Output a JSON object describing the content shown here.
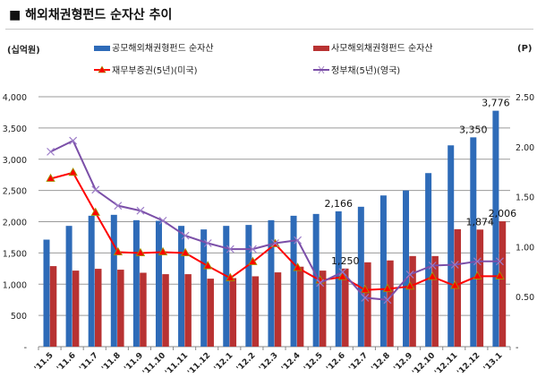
{
  "title": "■ 해외채권형펀드 순자산 추이",
  "chart_data": {
    "type": "bar+line",
    "title": "해외채권형펀드 순자산 추이",
    "left_axis_label": "(십억원)",
    "right_axis_label": "(P)",
    "left_ylim": [
      0,
      4000
    ],
    "left_ticks": [
      "-",
      "500",
      "1,000",
      "1,500",
      "2,000",
      "2,500",
      "3,000",
      "3,500",
      "4,000"
    ],
    "right_ylim": [
      0,
      2.5
    ],
    "right_ticks": [
      "-",
      "0.50",
      "1.00",
      "1.50",
      "2.00",
      "2.50"
    ],
    "grid": true,
    "legend_placement": "top",
    "categories": [
      "'11.5",
      "'11.6",
      "'11.7",
      "'11.8",
      "'11.9",
      "'11.10",
      "'11.11",
      "'11.12",
      "'12.1",
      "'12.2",
      "'12.3",
      "'12.4",
      "'12.5",
      "'12.6",
      "'12.7",
      "'12.8",
      "'12.9",
      "'12.10",
      "'12.11",
      "'12.12",
      "'13.1"
    ],
    "bar_series": [
      {
        "name": "공모해외채권형펀드 순자산",
        "color": "#2E6BB8",
        "axis": "left",
        "values": [
          1713,
          1933,
          2095,
          2110,
          2024,
          2014,
          1933,
          1876,
          1933,
          1948,
          2024,
          2095,
          2124,
          2166,
          2239,
          2420,
          2500,
          2778,
          3222,
          3350,
          3776
        ]
      },
      {
        "name": "사모해외채권형펀드 순자산",
        "color": "#B83232",
        "axis": "left",
        "values": [
          1289,
          1217,
          1246,
          1232,
          1183,
          1160,
          1160,
          1088,
          1097,
          1126,
          1189,
          1280,
          1217,
          1250,
          1350,
          1380,
          1450,
          1450,
          1880,
          1874,
          2006
        ]
      }
    ],
    "line_series": [
      {
        "name": "재무부증권(5년)(미국)",
        "color": "#FF0000",
        "marker": "triangle",
        "axis": "right",
        "values": [
          1.68,
          1.74,
          1.34,
          0.945,
          0.936,
          0.945,
          0.936,
          0.806,
          0.686,
          0.847,
          1.026,
          0.788,
          0.662,
          0.698,
          0.567,
          0.578,
          0.602,
          0.698,
          0.609,
          0.704,
          0.704
        ]
      },
      {
        "name": "정부채(5년)(영국)",
        "color": "#7B4FA8",
        "marker": "x",
        "axis": "right",
        "values": [
          1.95,
          2.06,
          1.57,
          1.41,
          1.36,
          1.26,
          1.11,
          1.035,
          0.976,
          0.976,
          1.035,
          1.065,
          0.638,
          0.746,
          0.489,
          0.468,
          0.722,
          0.811,
          0.82,
          0.853,
          0.853
        ]
      }
    ],
    "data_labels": [
      {
        "category": "'12.6",
        "series": 0,
        "text": "2,166"
      },
      {
        "category": "'12.6",
        "series": 1,
        "text": "1,250"
      },
      {
        "category": "'12.12",
        "series": 0,
        "text": "3,350"
      },
      {
        "category": "'12.12",
        "series": 1,
        "text": "1,874"
      },
      {
        "category": "'13.1",
        "series": 0,
        "text": "3,776"
      },
      {
        "category": "'13.1",
        "series": 1,
        "text": "2,006"
      }
    ]
  }
}
